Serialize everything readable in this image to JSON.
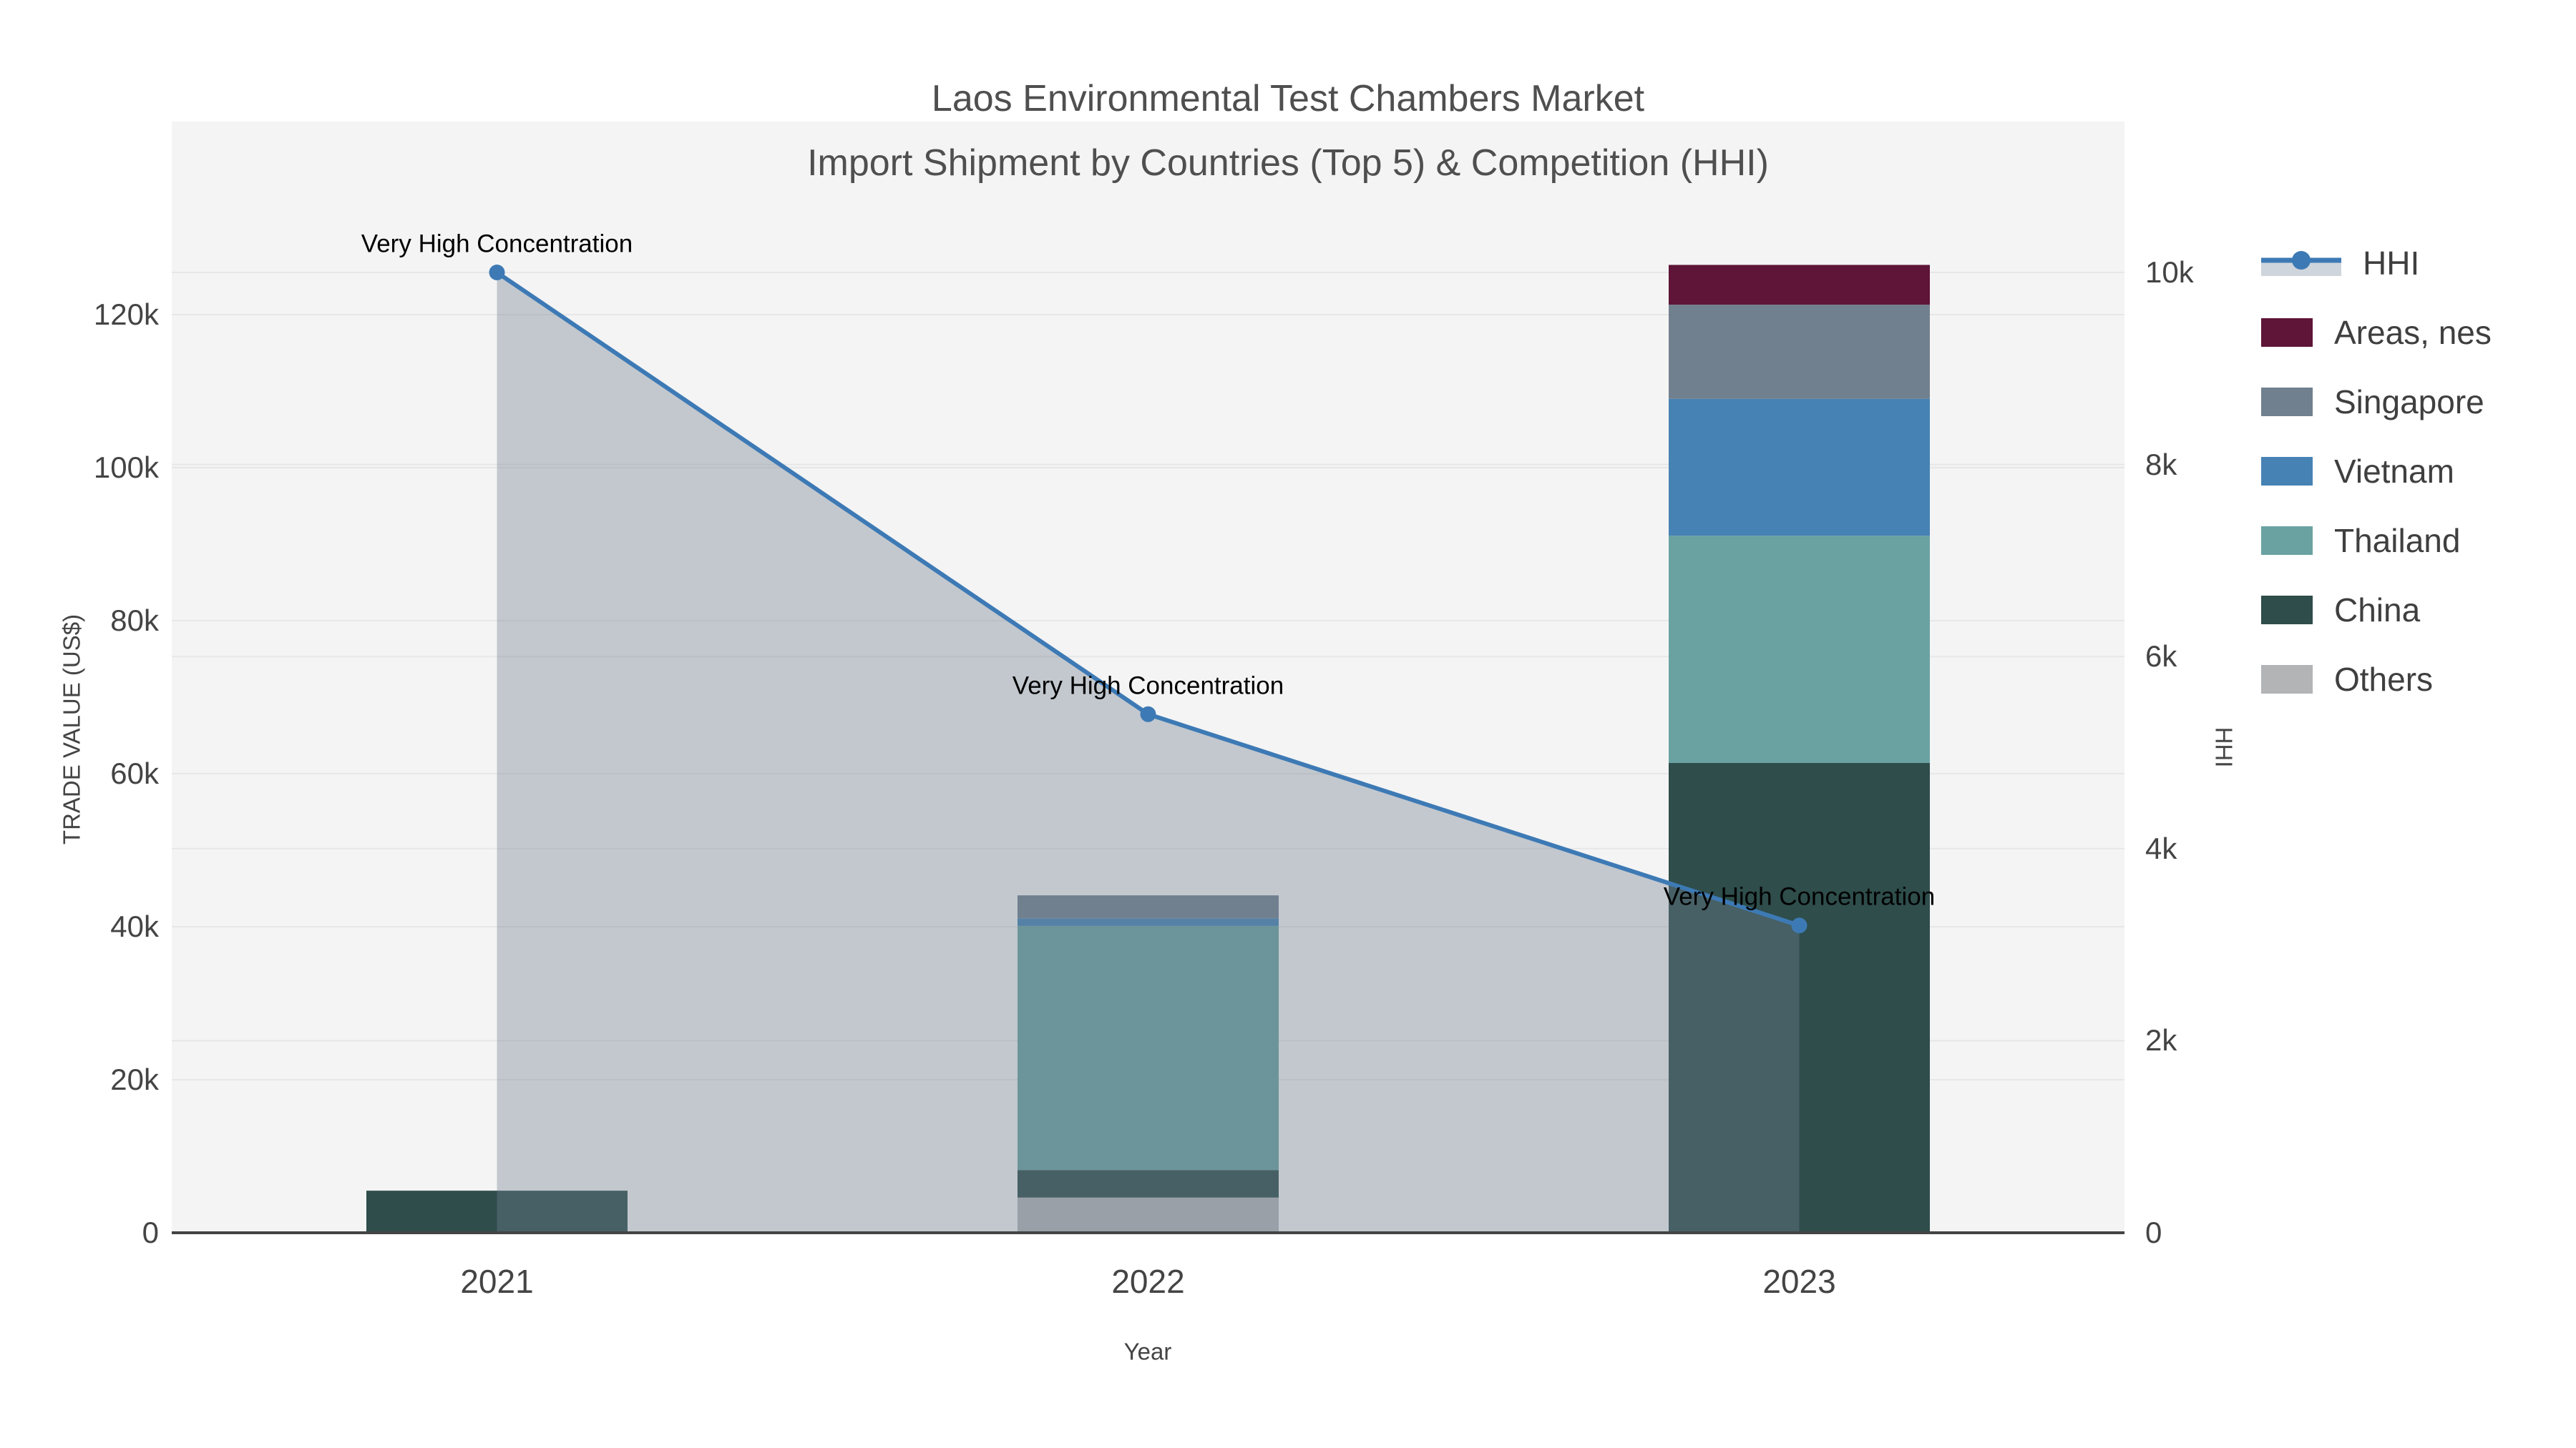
{
  "title": {
    "line1": "Laos Environmental Test Chambers Market",
    "line2": "Import Shipment by Countries (Top 5) & Competition (HHI)"
  },
  "axes": {
    "x": {
      "title": "Year",
      "categories": [
        "2021",
        "2022",
        "2023"
      ]
    },
    "y_left": {
      "title": "TRADE VALUE (US$)",
      "ticks": [
        {
          "label": "0",
          "value": 0
        },
        {
          "label": "20k",
          "value": 20000
        },
        {
          "label": "40k",
          "value": 40000
        },
        {
          "label": "60k",
          "value": 60000
        },
        {
          "label": "80k",
          "value": 80000
        },
        {
          "label": "100k",
          "value": 100000
        },
        {
          "label": "120k",
          "value": 120000
        }
      ]
    },
    "y_right": {
      "title": "HHI",
      "ticks": [
        {
          "label": "0",
          "value": 0
        },
        {
          "label": "2k",
          "value": 2000
        },
        {
          "label": "4k",
          "value": 4000
        },
        {
          "label": "6k",
          "value": 6000
        },
        {
          "label": "8k",
          "value": 8000
        },
        {
          "label": "10k",
          "value": 10000
        }
      ]
    }
  },
  "legend": {
    "items": [
      {
        "id": "hhi",
        "label": "HHI",
        "type": "line",
        "color": "#3d7ab5",
        "fill": "#cfd5dc"
      },
      {
        "id": "areas-nes",
        "label": "Areas, nes",
        "type": "rect",
        "color": "#5e1537"
      },
      {
        "id": "singapore",
        "label": "Singapore",
        "type": "rect",
        "color": "#71808e"
      },
      {
        "id": "vietnam",
        "label": "Vietnam",
        "type": "rect",
        "color": "#4682b4"
      },
      {
        "id": "thailand",
        "label": "Thailand",
        "type": "rect",
        "color": "#6aa2a2"
      },
      {
        "id": "china",
        "label": "China",
        "type": "rect",
        "color": "#2e4d4b"
      },
      {
        "id": "others",
        "label": "Others",
        "type": "rect",
        "color": "#b2b4b6"
      }
    ]
  },
  "chart_data": {
    "type": "combo_stacked_bar_line",
    "title": "Laos Environmental Test Chambers Market — Import Shipment by Countries (Top 5) & Competition (HHI)",
    "categories": [
      "2021",
      "2022",
      "2023"
    ],
    "xlabel": "Year",
    "ylabel_left": "TRADE VALUE (US$)",
    "ylabel_right": "HHI",
    "ylim_left": [
      0,
      145000
    ],
    "ylim_right": [
      0,
      11570
    ],
    "grid": true,
    "legend_position": "right",
    "bar_unit": "US$ trade value",
    "bar_stack_order": "bottom-to-top",
    "bar_series": [
      {
        "name": "Others",
        "color": "#b2b4b6",
        "values": [
          0,
          4600,
          0
        ]
      },
      {
        "name": "China",
        "color": "#2e4d4b",
        "values": [
          5500,
          3600,
          61400
        ]
      },
      {
        "name": "Thailand",
        "color": "#6aa2a2",
        "values": [
          0,
          31900,
          29700
        ]
      },
      {
        "name": "Vietnam",
        "color": "#4682b4",
        "values": [
          0,
          1000,
          17900
        ]
      },
      {
        "name": "Singapore",
        "color": "#71808e",
        "values": [
          0,
          3000,
          12300
        ]
      },
      {
        "name": "Areas, nes",
        "color": "#5e1537",
        "values": [
          0,
          0,
          5200
        ]
      }
    ],
    "line_series": {
      "name": "HHI",
      "values": [
        10000,
        5400,
        3200
      ],
      "color": "#3d7ab5",
      "area_fill": "rgba(113,128,144,0.38)",
      "annotation": "Very High Concentration"
    },
    "plot_background": "#f4f4f4",
    "gridline_color": "#e7e7e7",
    "axisline_color": "#444444"
  }
}
